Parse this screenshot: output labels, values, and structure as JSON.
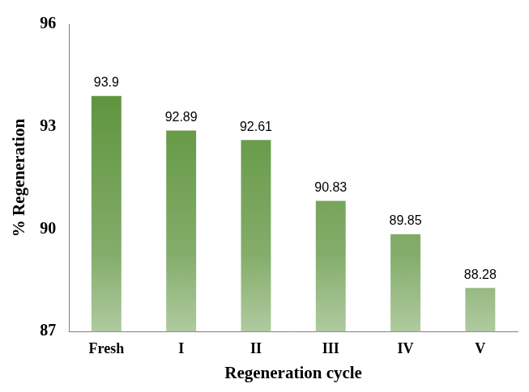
{
  "chart_data": {
    "type": "bar",
    "x_label": "Regeneration cycle",
    "y_label": "% Regeneration",
    "categories": [
      "Fresh",
      "I",
      "II",
      "III",
      "IV",
      "V"
    ],
    "values": [
      93.9,
      92.89,
      92.61,
      90.83,
      89.85,
      88.28
    ],
    "color": "#4f8a2b",
    "ylim": [
      87,
      96
    ],
    "yticks": [
      87,
      90,
      93,
      96
    ],
    "grid": false,
    "data_labels": true
  }
}
